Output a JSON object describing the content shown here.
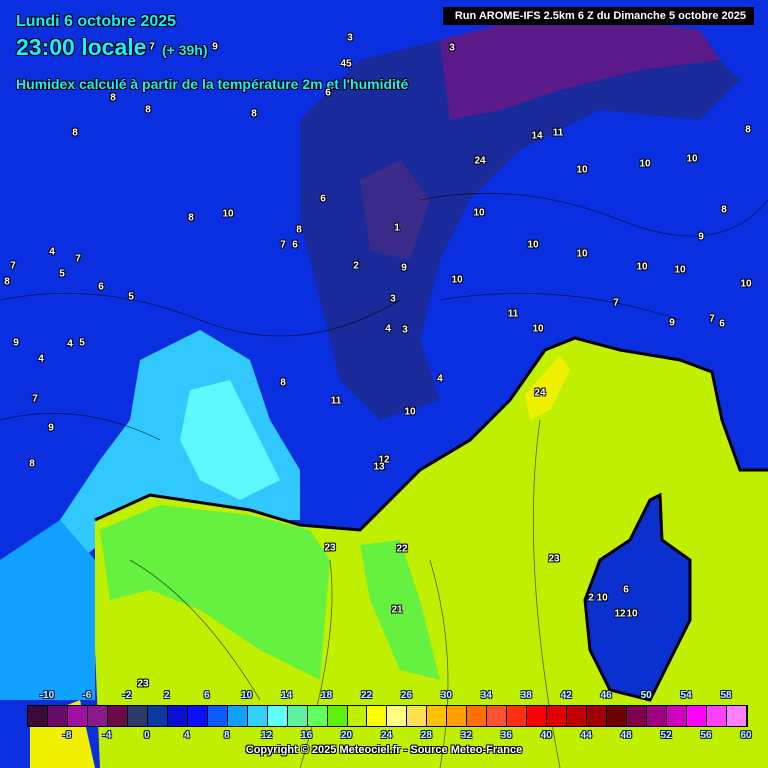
{
  "header": {
    "date": "Lundi 6 octobre 2025",
    "time": "23:00 locale",
    "lead": "(+ 39h)",
    "title": "Humidex calculé à partir de la température 2m et l'humidité",
    "run": "Run AROME-IFS 2.5km 6 Z du Dimanche 5 octobre 2025"
  },
  "point_values": [
    "3",
    "3",
    "8",
    "8",
    "8",
    "8",
    "6",
    "45",
    "9",
    "7",
    "24",
    "14",
    "11",
    "10",
    "10",
    "10",
    "8",
    "8",
    "10",
    "8",
    "8",
    "7",
    "6",
    "6",
    "10",
    "10",
    "10",
    "9",
    "10",
    "10",
    "10",
    "10",
    "9",
    "2",
    "1",
    "4",
    "7",
    "7",
    "5",
    "8",
    "6",
    "5",
    "3",
    "7",
    "11",
    "10",
    "9",
    "7",
    "6",
    "9",
    "4",
    "5",
    "4",
    "3",
    "4",
    "8",
    "4",
    "24",
    "7",
    "11",
    "10",
    "9",
    "8",
    "12",
    "13",
    "23",
    "22",
    "23",
    "21",
    "6",
    "10",
    "12",
    "2 10",
    "23"
  ],
  "legend": {
    "top_labels": [
      "-10",
      "-6",
      "-2",
      "2",
      "6",
      "10",
      "14",
      "18",
      "22",
      "26",
      "30",
      "34",
      "38",
      "42",
      "46",
      "50",
      "54",
      "58"
    ],
    "bottom_labels": [
      "-8",
      "-4",
      "0",
      "4",
      "8",
      "12",
      "16",
      "20",
      "24",
      "28",
      "32",
      "36",
      "40",
      "44",
      "48",
      "52",
      "56",
      "60"
    ],
    "colors": [
      "#3a0a3a",
      "#6a0a6a",
      "#a010a0",
      "#8a1a8a",
      "#6a0a4a",
      "#2a3a6a",
      "#0a3aa0",
      "#0a10d0",
      "#0a10ff",
      "#0a5aff",
      "#10a0ff",
      "#30d0ff",
      "#60ffff",
      "#60f0a0",
      "#60ff60",
      "#60f010",
      "#c0f000",
      "#ffff00",
      "#ffff80",
      "#ffe050",
      "#ffc000",
      "#ffa000",
      "#ff7000",
      "#ff5030",
      "#ff3010",
      "#ff0000",
      "#e00000",
      "#c00000",
      "#a00000",
      "#700000",
      "#800050",
      "#a00080",
      "#d000c0",
      "#ff00ff",
      "#ff40ff",
      "#ff80ff"
    ]
  },
  "copyright": "Copyright © 2025 Meteociel.fr - Source Meteo-France"
}
